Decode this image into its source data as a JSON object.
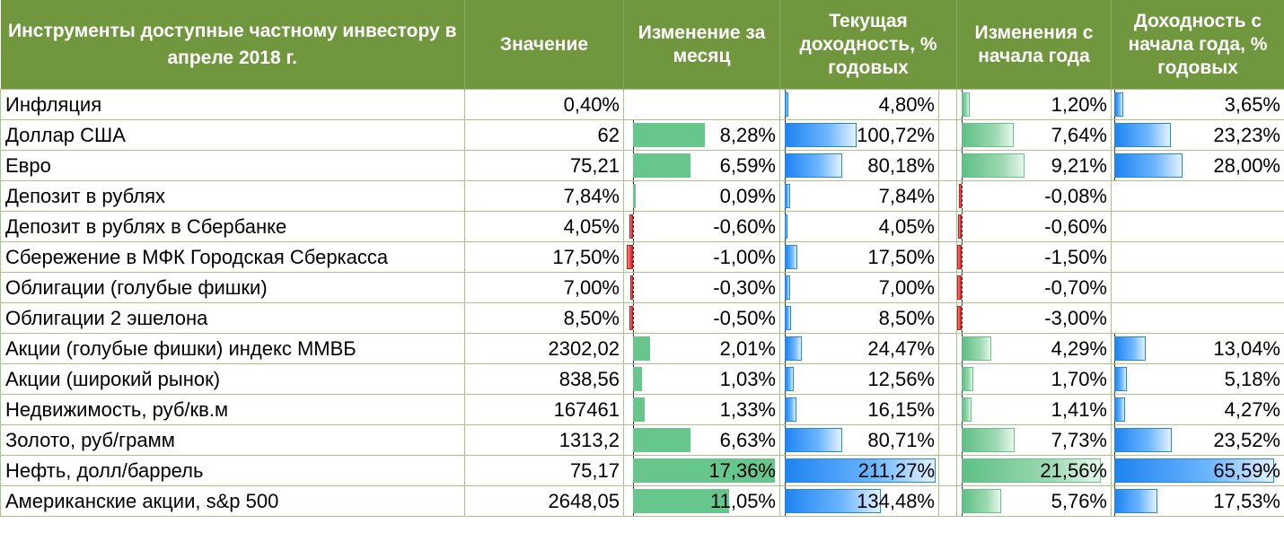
{
  "headers": {
    "instrument": "Инструменты доступные частному инвестору в апреле 2018 г.",
    "value": "Значение",
    "month_change": "Изменение за месяц",
    "current_yield": "Текущая доходность, % годовых",
    "ytd_change": "Изменения с начала года",
    "ytd_yield": "Доходность с начала года, % годовых"
  },
  "colors": {
    "header_bg": "#70963e",
    "green_bar": "#66c68c",
    "blue_bar": "#1e84f0",
    "red_bar": "#e21b1b"
  },
  "rows": [
    {
      "name": "Инфляция",
      "value": "0,40%",
      "month_change": "",
      "month_change_num": null,
      "current_yield": "4,80%",
      "current_yield_num": 4.8,
      "ytd_change": "1,20%",
      "ytd_change_num": 1.2,
      "ytd_yield": "3,65%",
      "ytd_yield_num": 3.65
    },
    {
      "name": "Доллар США",
      "value": "62",
      "month_change": "8,28%",
      "month_change_num": 8.28,
      "current_yield": "100,72%",
      "current_yield_num": 100.72,
      "ytd_change": "7,64%",
      "ytd_change_num": 7.64,
      "ytd_yield": "23,23%",
      "ytd_yield_num": 23.23
    },
    {
      "name": "Евро",
      "value": "75,21",
      "month_change": "6,59%",
      "month_change_num": 6.59,
      "current_yield": "80,18%",
      "current_yield_num": 80.18,
      "ytd_change": "9,21%",
      "ytd_change_num": 9.21,
      "ytd_yield": "28,00%",
      "ytd_yield_num": 28.0
    },
    {
      "name": "Депозит в рублях",
      "value": "7,84%",
      "month_change": "0,09%",
      "month_change_num": 0.09,
      "current_yield": "7,84%",
      "current_yield_num": 7.84,
      "ytd_change": "-0,08%",
      "ytd_change_num": -0.08,
      "ytd_yield": "",
      "ytd_yield_num": null
    },
    {
      "name": "Депозит в рублях в Сбербанке",
      "value": "4,05%",
      "month_change": "-0,60%",
      "month_change_num": -0.6,
      "current_yield": "4,05%",
      "current_yield_num": 4.05,
      "ytd_change": "-0,60%",
      "ytd_change_num": -0.6,
      "ytd_yield": "",
      "ytd_yield_num": null
    },
    {
      "name": "Сбережение в МФК Городская Сберкасса",
      "value": "17,50%",
      "month_change": "-1,00%",
      "month_change_num": -1.0,
      "current_yield": "17,50%",
      "current_yield_num": 17.5,
      "ytd_change": "-1,50%",
      "ytd_change_num": -1.5,
      "ytd_yield": "",
      "ytd_yield_num": null
    },
    {
      "name": "Облигации (голубые фишки)",
      "value": "7,00%",
      "month_change": "-0,30%",
      "month_change_num": -0.3,
      "current_yield": "7,00%",
      "current_yield_num": 7.0,
      "ytd_change": "-0,70%",
      "ytd_change_num": -0.7,
      "ytd_yield": "",
      "ytd_yield_num": null
    },
    {
      "name": "Облигации 2 эшелона",
      "value": "8,50%",
      "month_change": "-0,50%",
      "month_change_num": -0.5,
      "current_yield": "8,50%",
      "current_yield_num": 8.5,
      "ytd_change": "-3,00%",
      "ytd_change_num": -3.0,
      "ytd_yield": "",
      "ytd_yield_num": null
    },
    {
      "name": "Акции (голубые фишки) индекс ММВБ",
      "value": "2302,02",
      "month_change": "2,01%",
      "month_change_num": 2.01,
      "current_yield": "24,47%",
      "current_yield_num": 24.47,
      "ytd_change": "4,29%",
      "ytd_change_num": 4.29,
      "ytd_yield": "13,04%",
      "ytd_yield_num": 13.04
    },
    {
      "name": "Акции (широкий рынок)",
      "value": "838,56",
      "month_change": "1,03%",
      "month_change_num": 1.03,
      "current_yield": "12,56%",
      "current_yield_num": 12.56,
      "ytd_change": "1,70%",
      "ytd_change_num": 1.7,
      "ytd_yield": "5,18%",
      "ytd_yield_num": 5.18
    },
    {
      "name": "Недвижимость, руб/кв.м",
      "value": "167461",
      "month_change": "1,33%",
      "month_change_num": 1.33,
      "current_yield": "16,15%",
      "current_yield_num": 16.15,
      "ytd_change": "1,41%",
      "ytd_change_num": 1.41,
      "ytd_yield": "4,27%",
      "ytd_yield_num": 4.27
    },
    {
      "name": "Золото, руб/грамм",
      "value": "1313,2",
      "month_change": "6,63%",
      "month_change_num": 6.63,
      "current_yield": "80,71%",
      "current_yield_num": 80.71,
      "ytd_change": "7,73%",
      "ytd_change_num": 7.73,
      "ytd_yield": "23,52%",
      "ytd_yield_num": 23.52
    },
    {
      "name": "Нефть, долл/баррель",
      "value": "75,17",
      "month_change": "17,36%",
      "month_change_num": 17.36,
      "current_yield": "211,27%",
      "current_yield_num": 211.27,
      "ytd_change": "21,56%",
      "ytd_change_num": 21.56,
      "ytd_yield": "65,59%",
      "ytd_yield_num": 65.59
    },
    {
      "name": "Американские акции, s&p 500",
      "value": "2648,05",
      "month_change": "11,05%",
      "month_change_num": 11.05,
      "current_yield": "134,48%",
      "current_yield_num": 134.48,
      "ytd_change": "5,76%",
      "ytd_change_num": 5.76,
      "ytd_yield": "17,53%",
      "ytd_yield_num": 17.53
    }
  ]
}
